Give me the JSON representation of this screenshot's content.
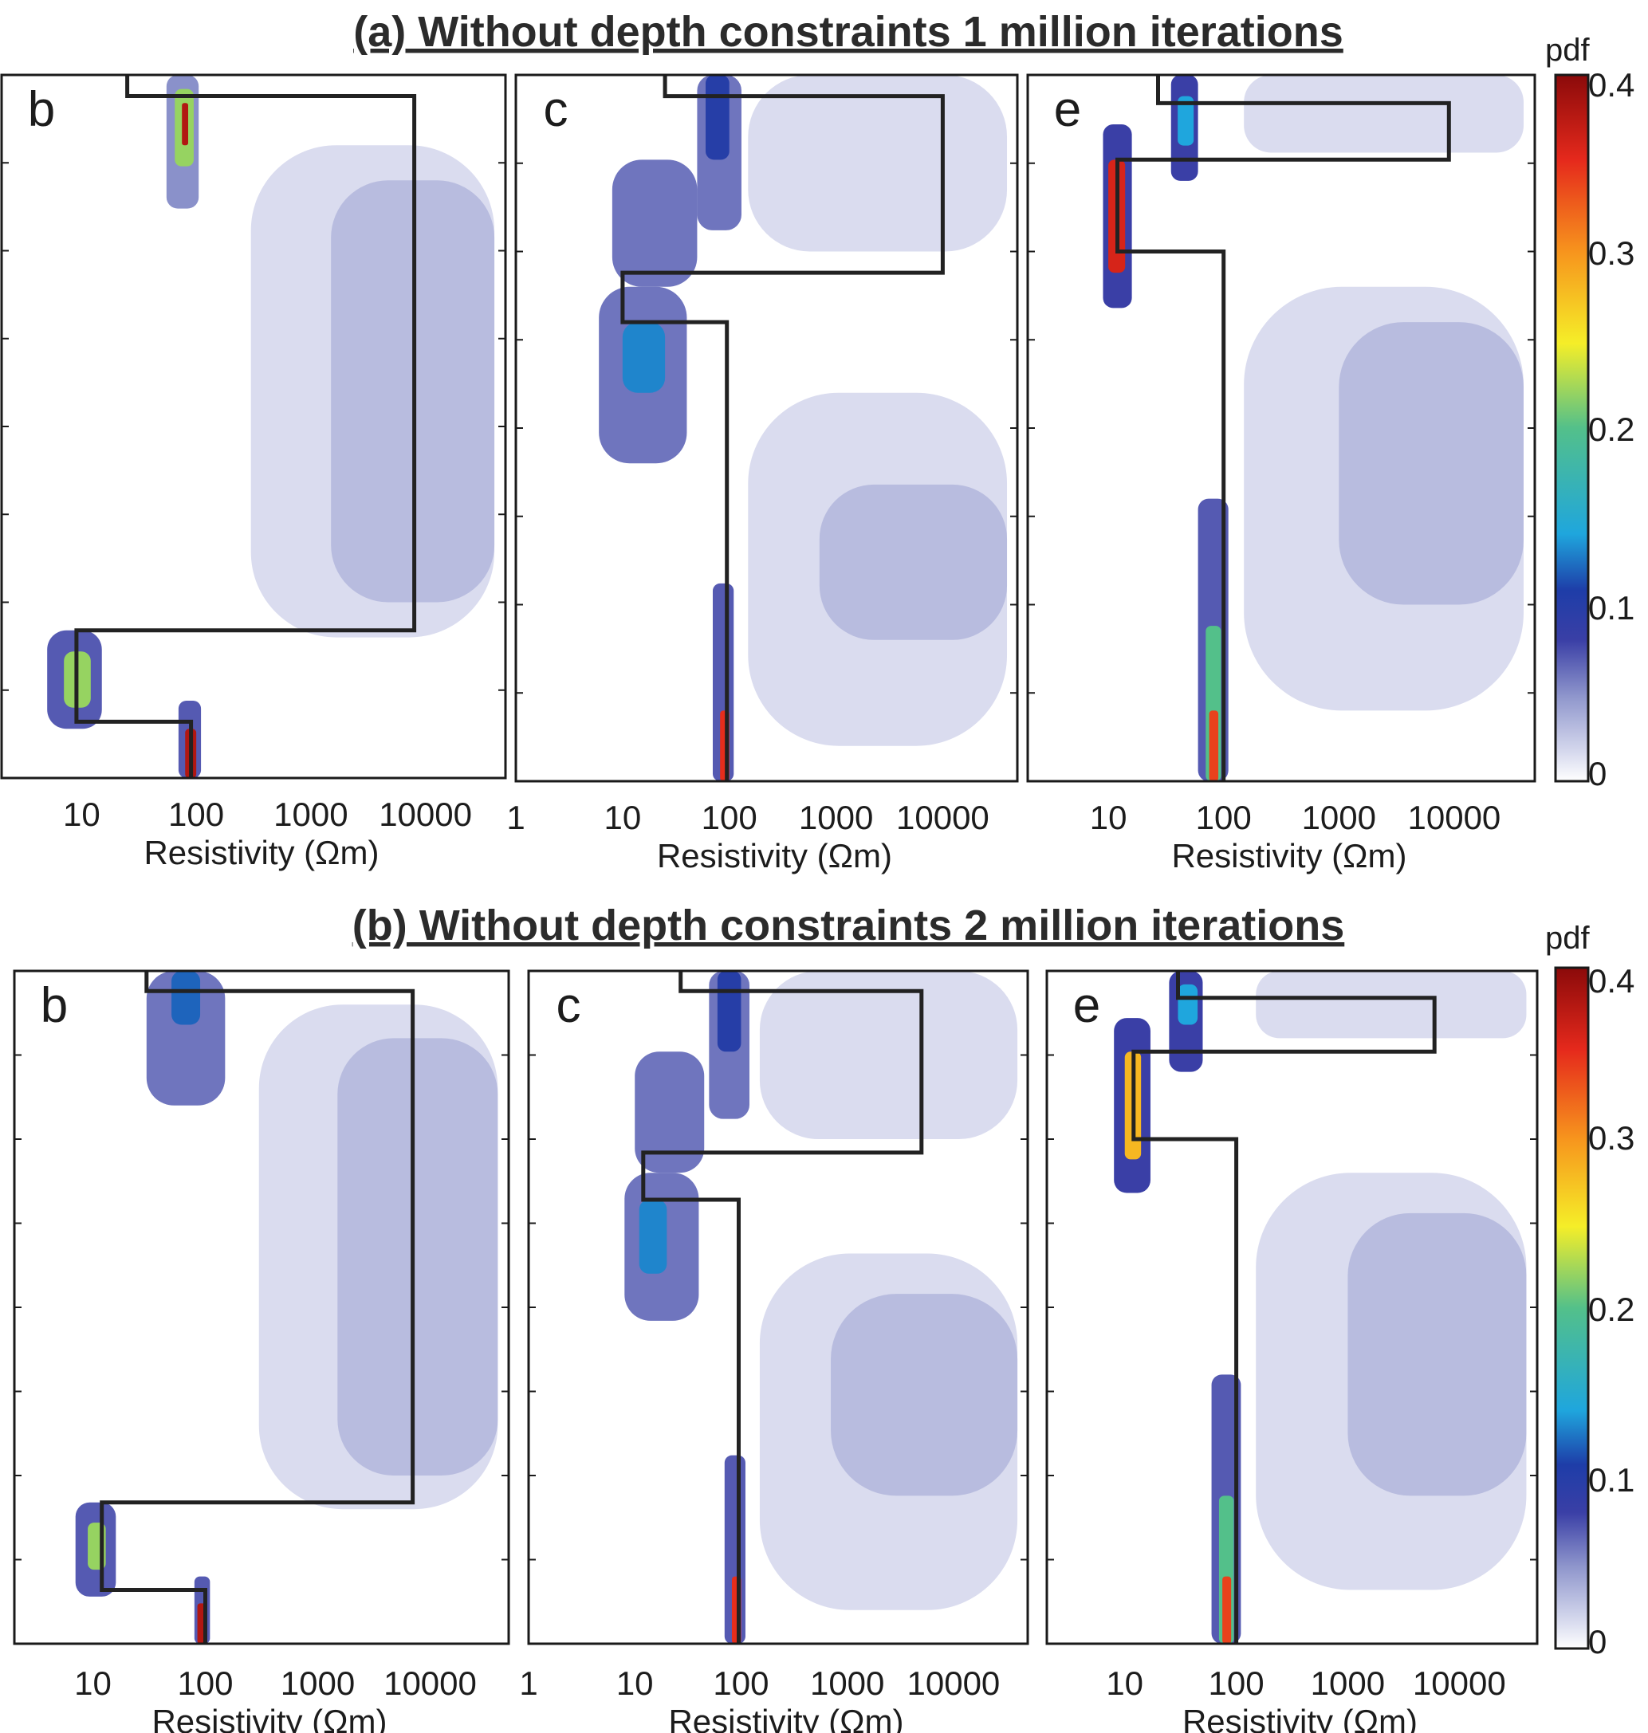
{
  "figure": {
    "rows": [
      {
        "title": "(a) Without depth constraints 1 million iterations",
        "colorbar": {
          "label": "pdf",
          "ticks": [
            "0.4",
            "0.3",
            "0.2",
            "0.1",
            "0"
          ],
          "range": [
            0,
            0.4
          ]
        }
      },
      {
        "title": "(b) Without depth constraints 2 million iterations",
        "colorbar": {
          "label": "pdf",
          "ticks": [
            "0.4",
            "0.3",
            "0.2",
            "0.1",
            "0"
          ],
          "range": [
            0,
            0.4
          ]
        }
      }
    ],
    "xlabel": "Resistivity (Ωm)"
  },
  "chart_data": [
    {
      "type": "heatmap",
      "row": "a",
      "panel": "b",
      "title": "(a) Without depth constraints 1 million iterations",
      "xlabel": "Resistivity (Ωm)",
      "xscale": "log",
      "xlim": [
        2,
        50000
      ],
      "x_tick_labels": [
        "10",
        "100",
        "1000",
        "10000"
      ],
      "true_model": [
        {
          "resistivity": 25,
          "depth": [
            0,
            0.03
          ]
        },
        {
          "resistivity": 8000,
          "depth": [
            0.03,
            0.79
          ]
        },
        {
          "resistivity": 9,
          "depth": [
            0.79,
            0.92
          ]
        },
        {
          "resistivity": 90,
          "depth": [
            0.92,
            1.0
          ]
        }
      ],
      "density": [
        {
          "x": [
            55,
            105
          ],
          "y": [
            0.0,
            0.19
          ],
          "level": 0.05
        },
        {
          "x": [
            65,
            95
          ],
          "y": [
            0.02,
            0.13
          ],
          "level": 0.22
        },
        {
          "x": [
            75,
            85
          ],
          "y": [
            0.04,
            0.1
          ],
          "level": 0.38
        },
        {
          "x": [
            5,
            15
          ],
          "y": [
            0.79,
            0.93
          ],
          "level": 0.07
        },
        {
          "x": [
            7,
            12
          ],
          "y": [
            0.82,
            0.9
          ],
          "level": 0.22
        },
        {
          "x": [
            70,
            110
          ],
          "y": [
            0.89,
            1.0
          ],
          "level": 0.07
        },
        {
          "x": [
            80,
            100
          ],
          "y": [
            0.93,
            1.0
          ],
          "level": 0.38
        },
        {
          "x": [
            300,
            40000
          ],
          "y": [
            0.1,
            0.8
          ],
          "level": 0.015
        },
        {
          "x": [
            1500,
            40000
          ],
          "y": [
            0.15,
            0.75
          ],
          "level": 0.03
        }
      ]
    },
    {
      "type": "heatmap",
      "row": "a",
      "panel": "c",
      "title": "(a) Without depth constraints 1 million iterations",
      "xlabel": "Resistivity (Ωm)",
      "xscale": "log",
      "xlim": [
        1,
        50000
      ],
      "x_tick_labels": [
        "1",
        "10",
        "100",
        "1000",
        "10000"
      ],
      "true_model": [
        {
          "resistivity": 25,
          "depth": [
            0,
            0.03
          ]
        },
        {
          "resistivity": 10000,
          "depth": [
            0.03,
            0.28
          ]
        },
        {
          "resistivity": 10,
          "depth": [
            0.28,
            0.35
          ]
        },
        {
          "resistivity": 95,
          "depth": [
            0.35,
            1.0
          ]
        }
      ],
      "density": [
        {
          "x": [
            50,
            130
          ],
          "y": [
            0.0,
            0.22
          ],
          "level": 0.06
        },
        {
          "x": [
            60,
            100
          ],
          "y": [
            0.0,
            0.12
          ],
          "level": 0.1
        },
        {
          "x": [
            8,
            50
          ],
          "y": [
            0.12,
            0.3
          ],
          "level": 0.06
        },
        {
          "x": [
            6,
            40
          ],
          "y": [
            0.3,
            0.55
          ],
          "level": 0.06
        },
        {
          "x": [
            10,
            25
          ],
          "y": [
            0.35,
            0.45
          ],
          "level": 0.13
        },
        {
          "x": [
            70,
            110
          ],
          "y": [
            0.72,
            1.0
          ],
          "level": 0.07
        },
        {
          "x": [
            82,
            100
          ],
          "y": [
            0.9,
            1.0
          ],
          "level": 0.35
        },
        {
          "x": [
            150,
            40000
          ],
          "y": [
            0.0,
            0.25
          ],
          "level": 0.015
        },
        {
          "x": [
            150,
            40000
          ],
          "y": [
            0.45,
            0.95
          ],
          "level": 0.015
        },
        {
          "x": [
            700,
            40000
          ],
          "y": [
            0.58,
            0.8
          ],
          "level": 0.03
        }
      ]
    },
    {
      "type": "heatmap",
      "row": "a",
      "panel": "e",
      "title": "(a) Without depth constraints 1 million iterations",
      "xlabel": "Resistivity (Ωm)",
      "xscale": "log",
      "xlim": [
        2,
        50000
      ],
      "x_tick_labels": [
        "10",
        "100",
        "1000",
        "10000"
      ],
      "true_model": [
        {
          "resistivity": 27,
          "depth": [
            0,
            0.04
          ]
        },
        {
          "resistivity": 9000,
          "depth": [
            0.04,
            0.12
          ]
        },
        {
          "resistivity": 12,
          "depth": [
            0.12,
            0.25
          ]
        },
        {
          "resistivity": 100,
          "depth": [
            0.25,
            1.0
          ]
        }
      ],
      "density": [
        {
          "x": [
            35,
            60
          ],
          "y": [
            0.0,
            0.15
          ],
          "level": 0.08
        },
        {
          "x": [
            40,
            55
          ],
          "y": [
            0.03,
            0.1
          ],
          "level": 0.14
        },
        {
          "x": [
            9,
            16
          ],
          "y": [
            0.07,
            0.33
          ],
          "level": 0.08
        },
        {
          "x": [
            10,
            14
          ],
          "y": [
            0.12,
            0.28
          ],
          "level": 0.36
        },
        {
          "x": [
            60,
            110
          ],
          "y": [
            0.6,
            1.0
          ],
          "level": 0.07
        },
        {
          "x": [
            70,
            95
          ],
          "y": [
            0.78,
            1.0
          ],
          "level": 0.2
        },
        {
          "x": [
            75,
            90
          ],
          "y": [
            0.9,
            1.0
          ],
          "level": 0.34
        },
        {
          "x": [
            150,
            40000
          ],
          "y": [
            0.0,
            0.11
          ],
          "level": 0.015
        },
        {
          "x": [
            150,
            40000
          ],
          "y": [
            0.3,
            0.9
          ],
          "level": 0.015
        },
        {
          "x": [
            1000,
            40000
          ],
          "y": [
            0.35,
            0.75
          ],
          "level": 0.03
        }
      ]
    },
    {
      "type": "heatmap",
      "row": "b",
      "panel": "b",
      "title": "(b) Without depth constraints 2 million iterations",
      "xlabel": "Resistivity (Ωm)",
      "xscale": "log",
      "xlim": [
        2,
        50000
      ],
      "x_tick_labels": [
        "10",
        "100",
        "1000",
        "10000"
      ],
      "true_model": [
        {
          "resistivity": 30,
          "depth": [
            0,
            0.03
          ]
        },
        {
          "resistivity": 7000,
          "depth": [
            0.03,
            0.79
          ]
        },
        {
          "resistivity": 12,
          "depth": [
            0.79,
            0.92
          ]
        },
        {
          "resistivity": 100,
          "depth": [
            0.92,
            1.0
          ]
        }
      ],
      "density": [
        {
          "x": [
            30,
            150
          ],
          "y": [
            0.0,
            0.2
          ],
          "level": 0.06
        },
        {
          "x": [
            50,
            90
          ],
          "y": [
            0.0,
            0.08
          ],
          "level": 0.12
        },
        {
          "x": [
            7,
            16
          ],
          "y": [
            0.79,
            0.93
          ],
          "level": 0.07
        },
        {
          "x": [
            9,
            13
          ],
          "y": [
            0.82,
            0.89
          ],
          "level": 0.22
        },
        {
          "x": [
            80,
            110
          ],
          "y": [
            0.9,
            1.0
          ],
          "level": 0.07
        },
        {
          "x": [
            85,
            100
          ],
          "y": [
            0.94,
            1.0
          ],
          "level": 0.38
        },
        {
          "x": [
            300,
            40000
          ],
          "y": [
            0.05,
            0.8
          ],
          "level": 0.015
        },
        {
          "x": [
            1500,
            40000
          ],
          "y": [
            0.1,
            0.75
          ],
          "level": 0.03
        }
      ]
    },
    {
      "type": "heatmap",
      "row": "b",
      "panel": "c",
      "title": "(b) Without depth constraints 2 million iterations",
      "xlabel": "Resistivity (Ωm)",
      "xscale": "log",
      "xlim": [
        1,
        50000
      ],
      "x_tick_labels": [
        "1",
        "10",
        "100",
        "1000",
        "10000"
      ],
      "true_model": [
        {
          "resistivity": 27,
          "depth": [
            0,
            0.03
          ]
        },
        {
          "resistivity": 5000,
          "depth": [
            0.03,
            0.27
          ]
        },
        {
          "resistivity": 12,
          "depth": [
            0.27,
            0.34
          ]
        },
        {
          "resistivity": 95,
          "depth": [
            0.34,
            1.0
          ]
        }
      ],
      "density": [
        {
          "x": [
            50,
            120
          ],
          "y": [
            0.0,
            0.22
          ],
          "level": 0.06
        },
        {
          "x": [
            60,
            100
          ],
          "y": [
            0.0,
            0.12
          ],
          "level": 0.1
        },
        {
          "x": [
            10,
            45
          ],
          "y": [
            0.12,
            0.3
          ],
          "level": 0.06
        },
        {
          "x": [
            8,
            40
          ],
          "y": [
            0.3,
            0.52
          ],
          "level": 0.06
        },
        {
          "x": [
            11,
            20
          ],
          "y": [
            0.34,
            0.45
          ],
          "level": 0.13
        },
        {
          "x": [
            70,
            110
          ],
          "y": [
            0.72,
            1.0
          ],
          "level": 0.07
        },
        {
          "x": [
            82,
            100
          ],
          "y": [
            0.9,
            1.0
          ],
          "level": 0.35
        },
        {
          "x": [
            150,
            40000
          ],
          "y": [
            0.0,
            0.25
          ],
          "level": 0.015
        },
        {
          "x": [
            150,
            40000
          ],
          "y": [
            0.42,
            0.95
          ],
          "level": 0.015
        },
        {
          "x": [
            700,
            40000
          ],
          "y": [
            0.48,
            0.78
          ],
          "level": 0.03
        }
      ]
    },
    {
      "type": "heatmap",
      "row": "b",
      "panel": "e",
      "title": "(b) Without depth constraints 2 million iterations",
      "xlabel": "Resistivity (Ωm)",
      "xscale": "log",
      "xlim": [
        2,
        50000
      ],
      "x_tick_labels": [
        "10",
        "100",
        "1000",
        "10000"
      ],
      "true_model": [
        {
          "resistivity": 30,
          "depth": [
            0,
            0.04
          ]
        },
        {
          "resistivity": 6000,
          "depth": [
            0.04,
            0.12
          ]
        },
        {
          "resistivity": 12,
          "depth": [
            0.12,
            0.25
          ]
        },
        {
          "resistivity": 100,
          "depth": [
            0.25,
            1.0
          ]
        }
      ],
      "density": [
        {
          "x": [
            25,
            50
          ],
          "y": [
            0.0,
            0.15
          ],
          "level": 0.08
        },
        {
          "x": [
            30,
            45
          ],
          "y": [
            0.02,
            0.08
          ],
          "level": 0.14
        },
        {
          "x": [
            8,
            17
          ],
          "y": [
            0.07,
            0.33
          ],
          "level": 0.08
        },
        {
          "x": [
            10,
            14
          ],
          "y": [
            0.12,
            0.28
          ],
          "level": 0.28
        },
        {
          "x": [
            60,
            110
          ],
          "y": [
            0.6,
            1.0
          ],
          "level": 0.07
        },
        {
          "x": [
            70,
            95
          ],
          "y": [
            0.78,
            1.0
          ],
          "level": 0.2
        },
        {
          "x": [
            75,
            90
          ],
          "y": [
            0.9,
            1.0
          ],
          "level": 0.34
        },
        {
          "x": [
            150,
            40000
          ],
          "y": [
            0.0,
            0.1
          ],
          "level": 0.015
        },
        {
          "x": [
            150,
            40000
          ],
          "y": [
            0.3,
            0.92
          ],
          "level": 0.015
        },
        {
          "x": [
            1000,
            40000
          ],
          "y": [
            0.36,
            0.78
          ],
          "level": 0.03
        }
      ]
    }
  ]
}
